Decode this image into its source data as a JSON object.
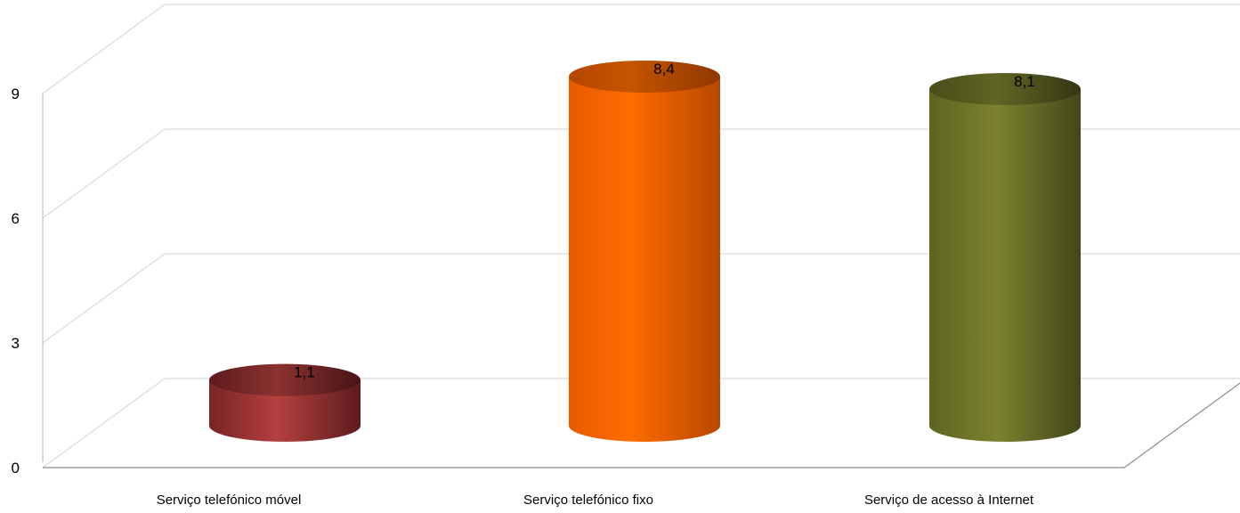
{
  "chart_data": {
    "type": "bar",
    "style": "3d-cylinder",
    "categories": [
      "Serviço telefónico móvel",
      "Serviço telefónico fixo",
      "Serviço de acesso à Internet"
    ],
    "values": [
      1.1,
      8.4,
      8.1
    ],
    "value_labels": [
      "1,1",
      "8,4",
      "8,1"
    ],
    "ylim": [
      0,
      12
    ],
    "yticks": [
      "0",
      "3",
      "6",
      "9"
    ],
    "grid": true,
    "legend": "none",
    "colors": [
      "#a8383a",
      "#ff6a00",
      "#7a7e2c"
    ]
  }
}
